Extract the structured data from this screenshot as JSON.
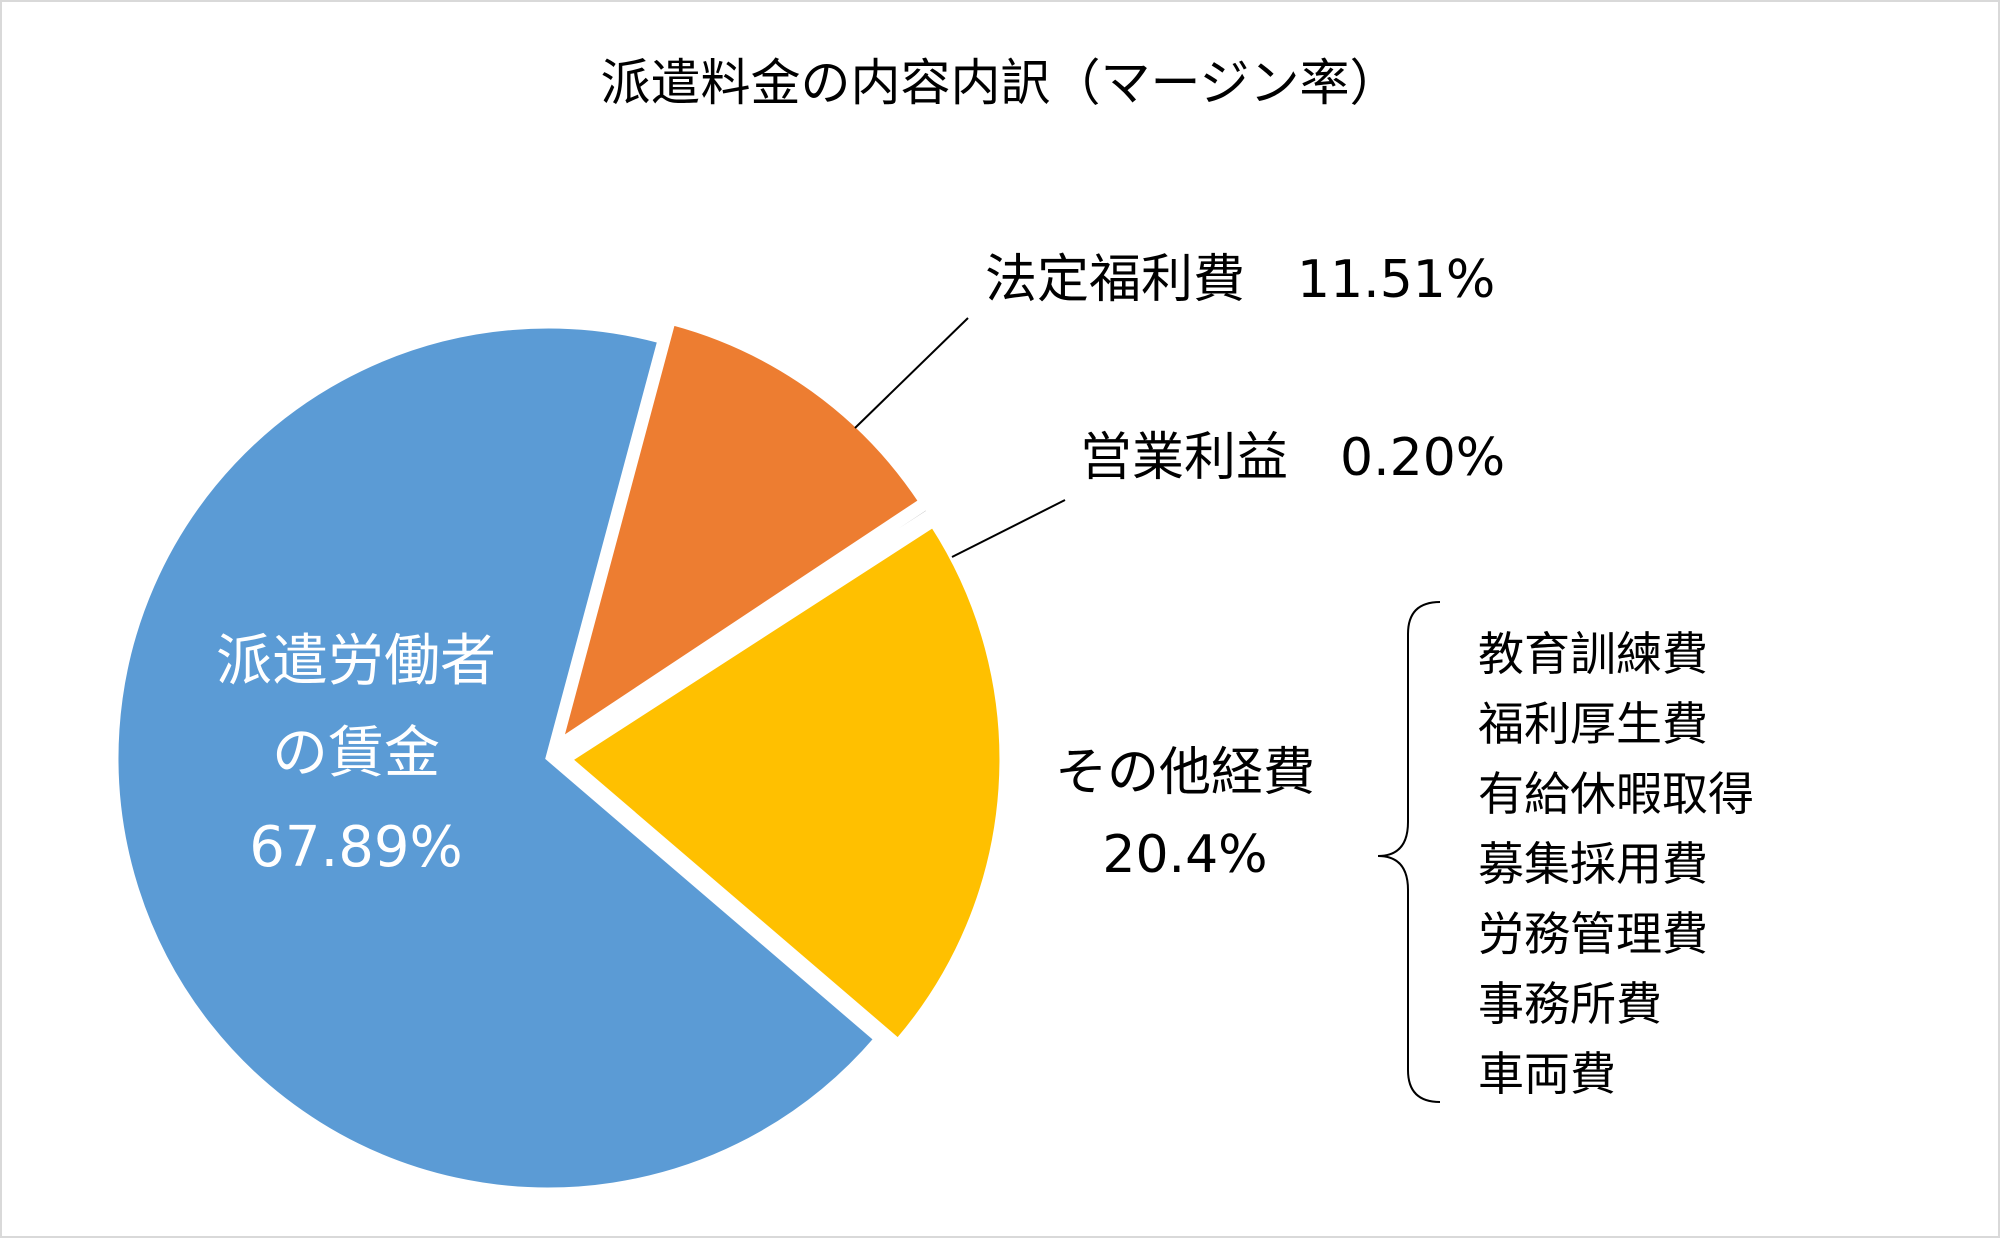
{
  "chart_data": {
    "type": "pie",
    "title": "派遣料金の内容内訳（マージン率）",
    "slices": [
      {
        "name": "派遣労働者の賃金",
        "value": 67.89,
        "value_label": "67.89%",
        "color": "#5B9BD5",
        "label_color": "#ffffff",
        "exploded": false
      },
      {
        "name": "法定福利費",
        "value": 11.51,
        "value_label": "11.51%",
        "color": "#ED7D31",
        "label_color": "#000000",
        "exploded": true
      },
      {
        "name": "営業利益",
        "value": 0.2,
        "value_label": "0.20%",
        "color": "#A5A5A5",
        "label_color": "#000000",
        "exploded": true
      },
      {
        "name": "その他経費",
        "value": 20.4,
        "value_label": "20.4%",
        "color": "#FFC000",
        "label_color": "#000000",
        "exploded": true
      }
    ],
    "slice_labels": {
      "wage": [
        "派遣労働者",
        "の賃金",
        "67.89%"
      ],
      "welfare": "法定福利費　11.51%",
      "profit": "営業利益　0.20%",
      "other": [
        "その他経費",
        "20.4%"
      ]
    },
    "other_expenses_breakdown": [
      "教育訓練費",
      "福利厚生費",
      "有給休暇取得",
      "募集採用費",
      "労務管理費",
      "事務所費",
      "車両費"
    ],
    "legend": "none"
  }
}
